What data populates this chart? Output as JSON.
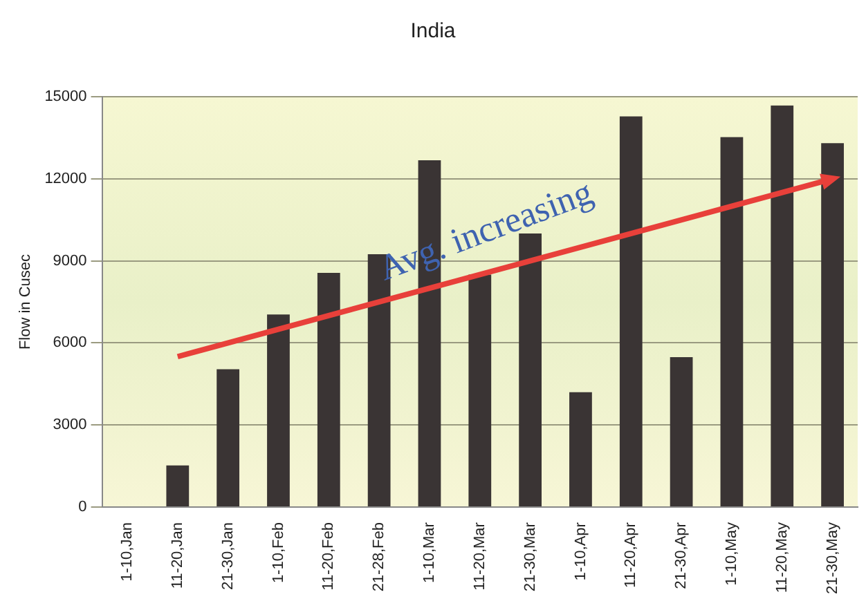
{
  "chart_data": {
    "type": "bar",
    "title": "India",
    "ylabel": "Flow in Cusec",
    "categories": [
      "1-10,Jan",
      "11-20,Jan",
      "21-30,Jan",
      "1-10,Feb",
      "11-20,Feb",
      "21-28,Feb",
      "1-10,Mar",
      "11-20,Mar",
      "21-30,Mar",
      "1-10,Apr",
      "11-20,Apr",
      "21-30,Apr",
      "1-10,May",
      "11-20,May",
      "21-30,May"
    ],
    "series": [
      {
        "color": "#3a3434",
        "values": [
          0,
          1520,
          5040,
          7040,
          8560,
          9240,
          12680,
          8500,
          10000,
          4200,
          14280,
          5480,
          13520,
          14680,
          13300
        ]
      },
      {
        "type": "line",
        "color": "#e8403a",
        "x": [
          "11-20,Jan",
          "21-30,May"
        ],
        "values": [
          5500,
          12000
        ]
      }
    ],
    "annotations": [
      "Avg. increasing"
    ],
    "ylim": [
      0,
      15000
    ],
    "yticks": [
      0,
      3000,
      6000,
      9000,
      12000,
      15000
    ],
    "grid": "y",
    "legend": false
  }
}
